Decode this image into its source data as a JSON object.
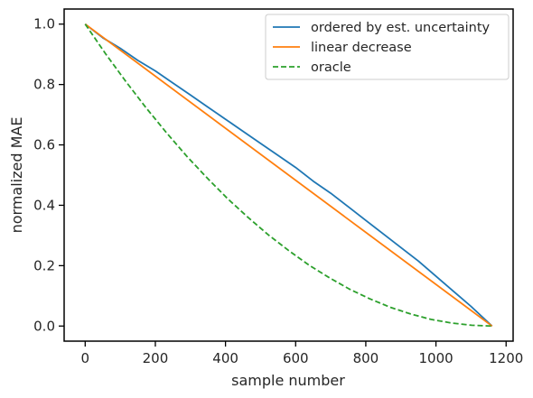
{
  "chart_data": {
    "type": "line",
    "title": "",
    "xlabel": "sample number",
    "ylabel": "normalized MAE",
    "xlim": [
      -60,
      1220
    ],
    "ylim": [
      -0.05,
      1.05
    ],
    "xticks": [
      0,
      200,
      400,
      600,
      800,
      1000,
      1200
    ],
    "yticks": [
      0.0,
      0.2,
      0.4,
      0.6,
      0.8,
      1.0
    ],
    "xtick_labels": [
      "0",
      "200",
      "400",
      "600",
      "800",
      "1000",
      "1200"
    ],
    "ytick_labels": [
      "0.0",
      "0.2",
      "0.4",
      "0.6",
      "0.8",
      "1.0"
    ],
    "grid": false,
    "legend_position": "top-right",
    "series": [
      {
        "name": "ordered by est. uncertainty",
        "color": "#1f77b4",
        "style": "solid",
        "x": [
          0,
          50,
          100,
          150,
          200,
          250,
          300,
          350,
          400,
          450,
          500,
          550,
          600,
          650,
          700,
          750,
          800,
          850,
          900,
          950,
          1000,
          1050,
          1100,
          1160
        ],
        "y": [
          1.0,
          0.955,
          0.92,
          0.88,
          0.845,
          0.805,
          0.765,
          0.725,
          0.685,
          0.645,
          0.605,
          0.565,
          0.525,
          0.48,
          0.44,
          0.395,
          0.35,
          0.305,
          0.26,
          0.215,
          0.165,
          0.115,
          0.065,
          0.0
        ]
      },
      {
        "name": "linear decrease",
        "color": "#ff7f0e",
        "style": "solid",
        "x": [
          0,
          1160
        ],
        "y": [
          1.0,
          0.0
        ]
      },
      {
        "name": "oracle",
        "color": "#2ca02c",
        "style": "dashed",
        "x": [
          0,
          58,
          116,
          174,
          232,
          290,
          348,
          406,
          464,
          522,
          580,
          638,
          696,
          754,
          812,
          870,
          928,
          986,
          1044,
          1102,
          1160
        ],
        "y": [
          1.0,
          0.902,
          0.81,
          0.722,
          0.64,
          0.562,
          0.49,
          0.422,
          0.36,
          0.302,
          0.25,
          0.202,
          0.16,
          0.122,
          0.09,
          0.062,
          0.04,
          0.022,
          0.01,
          0.0025,
          0.0
        ]
      }
    ]
  }
}
